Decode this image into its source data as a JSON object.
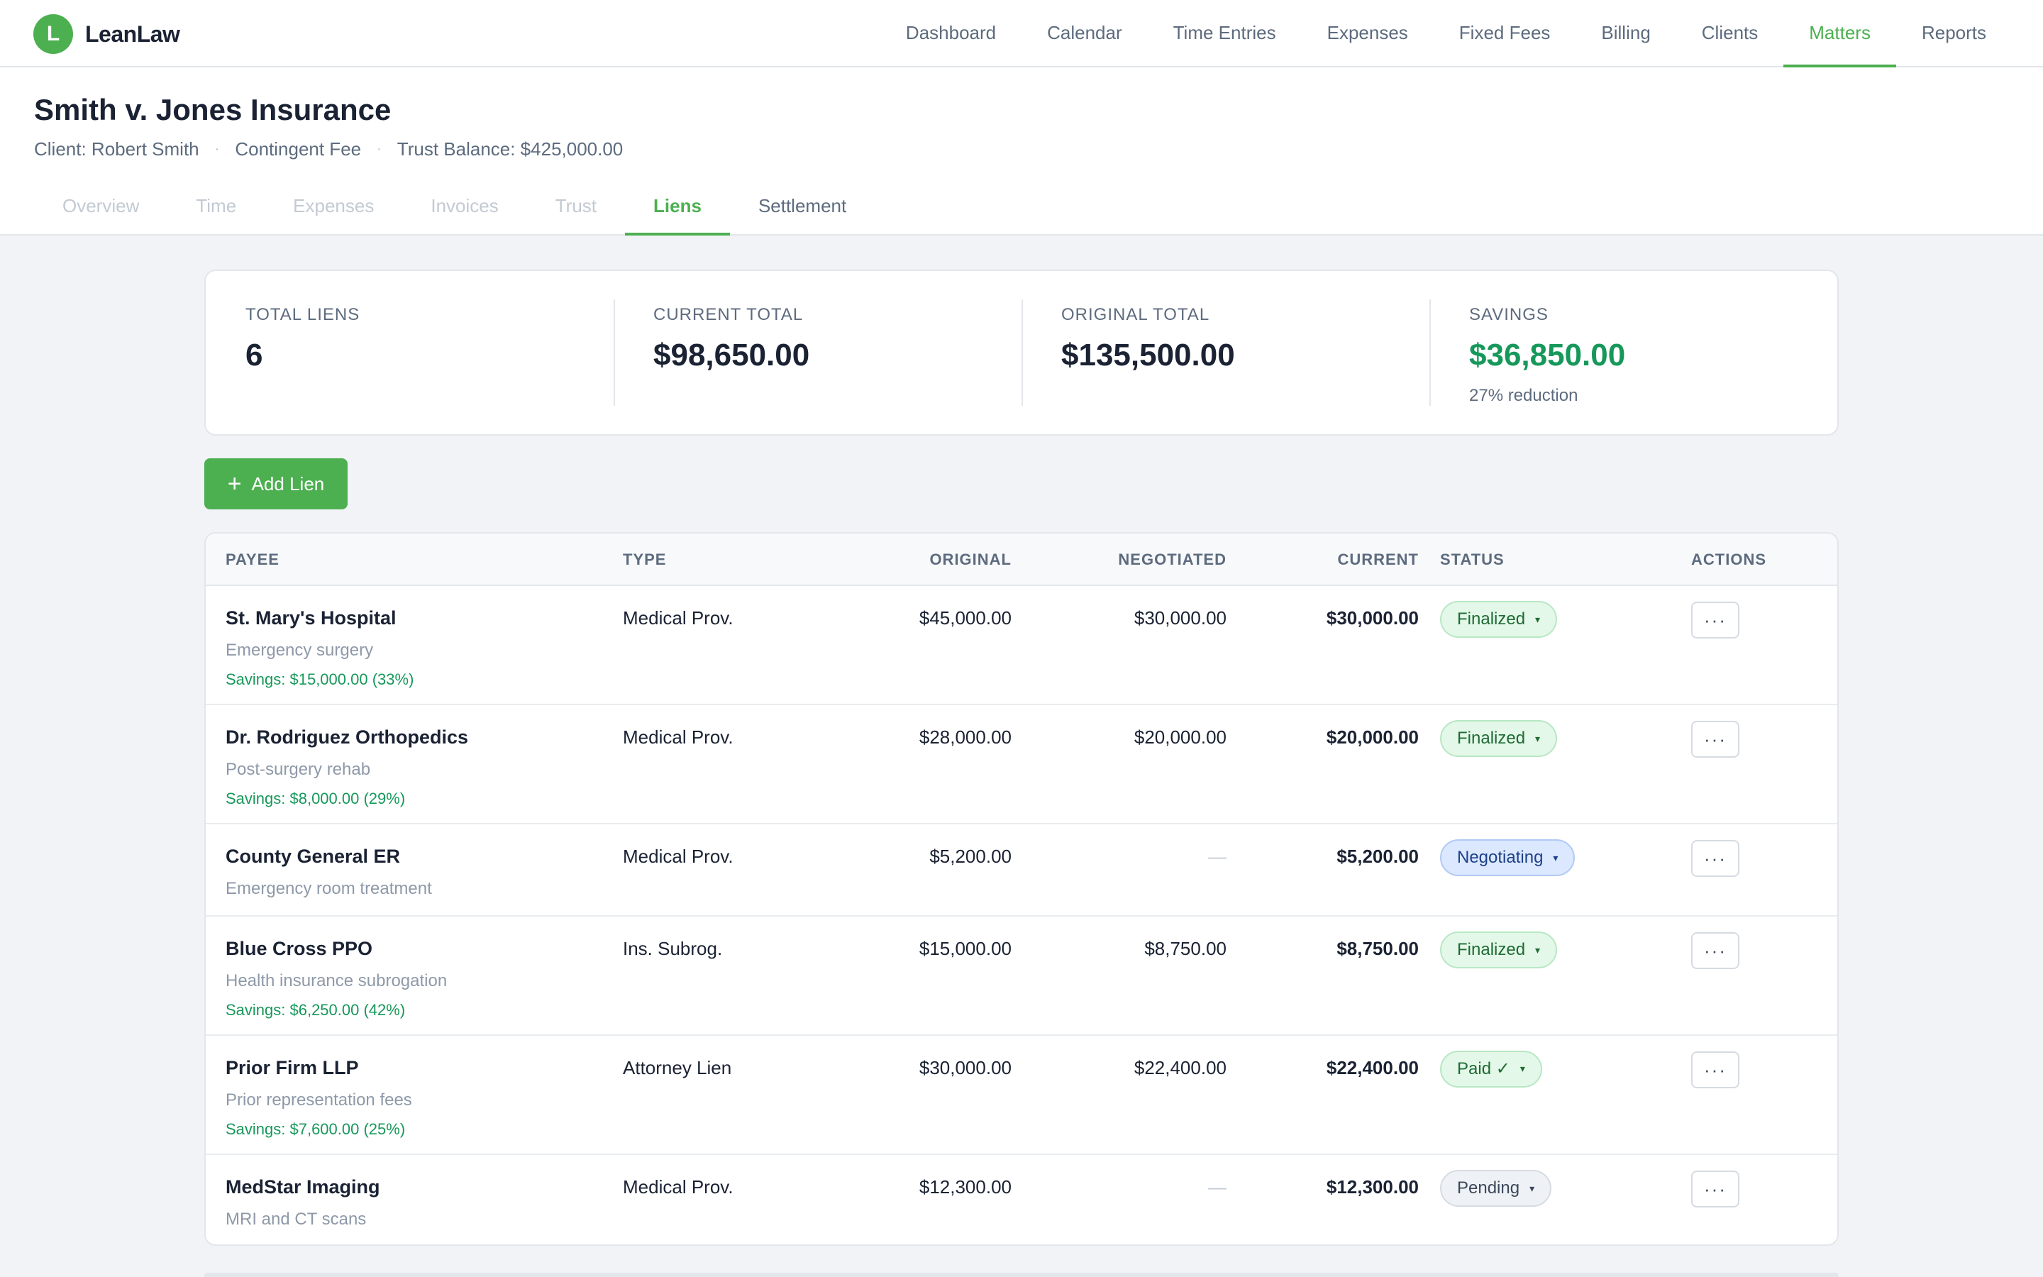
{
  "brand": {
    "logo_letter": "L",
    "name": "LeanLaw",
    "accent": "#4caf50"
  },
  "nav": {
    "items": [
      {
        "label": "Dashboard",
        "active": false
      },
      {
        "label": "Calendar",
        "active": false
      },
      {
        "label": "Time Entries",
        "active": false
      },
      {
        "label": "Expenses",
        "active": false
      },
      {
        "label": "Fixed Fees",
        "active": false
      },
      {
        "label": "Billing",
        "active": false
      },
      {
        "label": "Clients",
        "active": false
      },
      {
        "label": "Matters",
        "active": true
      },
      {
        "label": "Reports",
        "active": false
      }
    ]
  },
  "matter": {
    "title": "Smith v. Jones Insurance",
    "client": "Client: Robert Smith",
    "fee_type": "Contingent Fee",
    "trust_balance": "Trust Balance: $425,000.00",
    "separator": "·"
  },
  "subtabs": [
    {
      "label": "Overview",
      "state": "disabled"
    },
    {
      "label": "Time",
      "state": "disabled"
    },
    {
      "label": "Expenses",
      "state": "disabled"
    },
    {
      "label": "Invoices",
      "state": "disabled"
    },
    {
      "label": "Trust",
      "state": "disabled"
    },
    {
      "label": "Liens",
      "state": "active"
    },
    {
      "label": "Settlement",
      "state": "normal"
    }
  ],
  "summary": {
    "total_liens": {
      "label": "TOTAL LIENS",
      "value": "6"
    },
    "current_total": {
      "label": "CURRENT TOTAL",
      "value": "$98,650.00"
    },
    "original_total": {
      "label": "ORIGINAL TOTAL",
      "value": "$135,500.00"
    },
    "savings": {
      "label": "SAVINGS",
      "value": "$36,850.00",
      "sub": "27% reduction"
    }
  },
  "actions": {
    "add_lien_label": "Add Lien",
    "plus": "+"
  },
  "table": {
    "headers": {
      "payee": "PAYEE",
      "type": "TYPE",
      "original": "ORIGINAL",
      "negotiated": "NEGOTIATED",
      "current": "CURRENT",
      "status": "STATUS",
      "actions": "ACTIONS"
    },
    "rows": [
      {
        "payee": "St. Mary's Hospital",
        "desc": "Emergency surgery",
        "savings": "Savings: $15,000.00 (33%)",
        "type": "Medical Prov.",
        "original": "$45,000.00",
        "negotiated": "$30,000.00",
        "current": "$30,000.00",
        "status": "Finalized",
        "status_kind": "finalized"
      },
      {
        "payee": "Dr. Rodriguez Orthopedics",
        "desc": "Post-surgery rehab",
        "savings": "Savings: $8,000.00 (29%)",
        "type": "Medical Prov.",
        "original": "$28,000.00",
        "negotiated": "$20,000.00",
        "current": "$20,000.00",
        "status": "Finalized",
        "status_kind": "finalized"
      },
      {
        "payee": "County General ER",
        "desc": "Emergency room treatment",
        "savings": "",
        "type": "Medical Prov.",
        "original": "$5,200.00",
        "negotiated": "—",
        "current": "$5,200.00",
        "status": "Negotiating",
        "status_kind": "negotiating"
      },
      {
        "payee": "Blue Cross PPO",
        "desc": "Health insurance subrogation",
        "savings": "Savings: $6,250.00 (42%)",
        "type": "Ins. Subrog.",
        "original": "$15,000.00",
        "negotiated": "$8,750.00",
        "current": "$8,750.00",
        "status": "Finalized",
        "status_kind": "finalized"
      },
      {
        "payee": "Prior Firm LLP",
        "desc": "Prior representation fees",
        "savings": "Savings: $7,600.00 (25%)",
        "type": "Attorney Lien",
        "original": "$30,000.00",
        "negotiated": "$22,400.00",
        "current": "$22,400.00",
        "status": "Paid ✓",
        "status_kind": "paid"
      },
      {
        "payee": "MedStar Imaging",
        "desc": "MRI and CT scans",
        "savings": "",
        "type": "Medical Prov.",
        "original": "$12,300.00",
        "negotiated": "—",
        "current": "$12,300.00",
        "status": "Pending",
        "status_kind": "pending"
      }
    ],
    "more_label": "···",
    "caret": "▾"
  }
}
